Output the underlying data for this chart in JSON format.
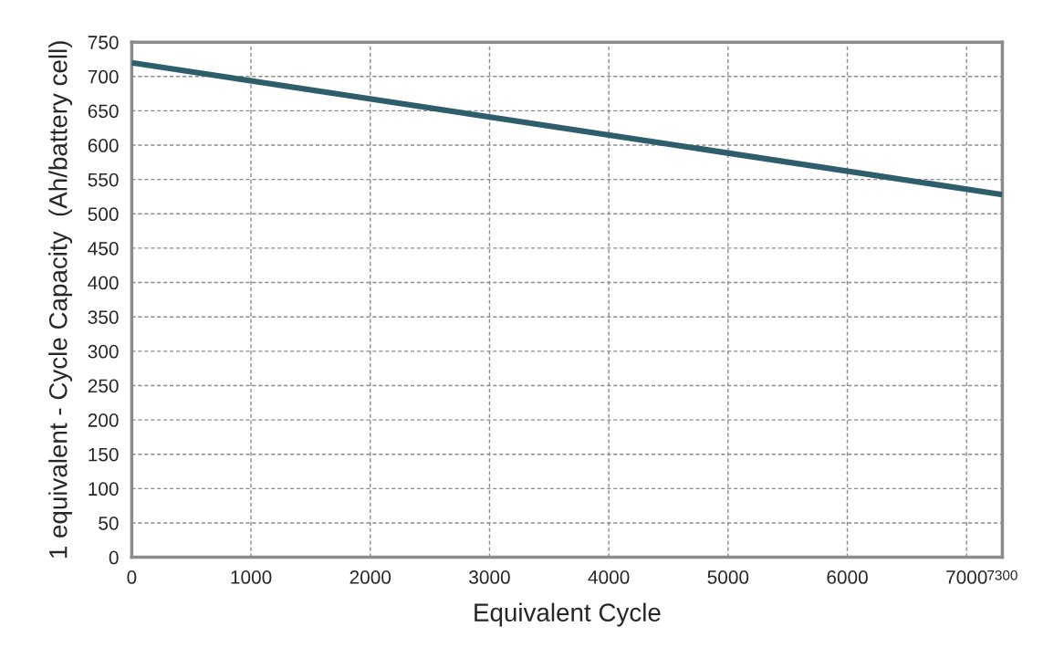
{
  "chart_data": {
    "type": "line",
    "xlabel": "Equivalent Cycle",
    "ylabel": "1 equivalent - Cycle Capacity  (Ah/battery cell)",
    "x": [
      0,
      7300
    ],
    "series": [
      {
        "color": "#2e5d6b",
        "values": [
          720,
          528
        ]
      }
    ],
    "xlim": [
      0,
      7300
    ],
    "xticks": [
      0,
      1000,
      2000,
      3000,
      4000,
      5000,
      6000,
      7000,
      7300
    ],
    "ylim": [
      0,
      750
    ],
    "yticks": [
      0,
      50,
      100,
      150,
      200,
      250,
      300,
      350,
      400,
      450,
      500,
      550,
      600,
      650,
      700,
      750
    ],
    "grid": true,
    "marker": "none",
    "line_style": "solid"
  }
}
